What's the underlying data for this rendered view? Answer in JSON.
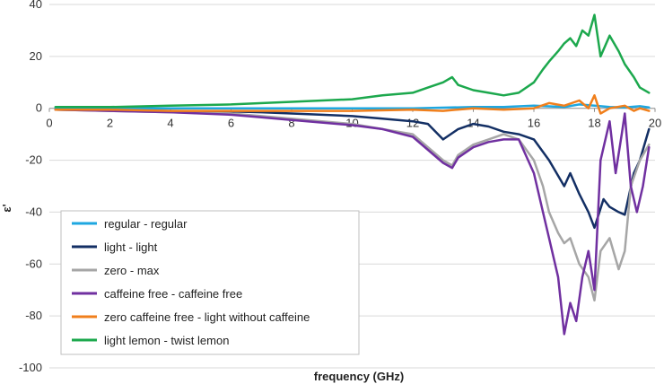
{
  "chart_data": {
    "type": "line",
    "title": "",
    "xlabel": "frequency (GHz)",
    "ylabel": "ε'",
    "xlim": [
      0,
      20
    ],
    "ylim": [
      -100,
      40
    ],
    "xticks": [
      0,
      2,
      4,
      6,
      8,
      10,
      12,
      14,
      16,
      18,
      20
    ],
    "yticks": [
      -100,
      -80,
      -60,
      -40,
      -20,
      0,
      20,
      40
    ],
    "grid": "y-major",
    "legend": "bottom-left",
    "series": [
      {
        "name": "regular - regular",
        "color": "#1ea7e0",
        "x": [
          0.2,
          2,
          4,
          6,
          8,
          10,
          12,
          14,
          15,
          16,
          17,
          17.5,
          18,
          18.5,
          19,
          19.5,
          19.8
        ],
        "y": [
          0,
          0,
          0,
          0,
          0,
          0,
          0,
          0.5,
          0.5,
          1,
          0.5,
          1.5,
          1,
          0.5,
          0.3,
          0.8,
          0.3
        ]
      },
      {
        "name": "light - light",
        "color": "#132f64",
        "x": [
          0.2,
          2,
          4,
          6,
          7,
          8,
          9,
          10,
          11,
          12,
          12.5,
          13,
          13.5,
          14,
          14.5,
          15,
          15.5,
          16,
          16.5,
          17,
          17.2,
          17.5,
          17.8,
          18,
          18.3,
          18.5,
          18.8,
          19,
          19.3,
          19.5,
          19.8
        ],
        "y": [
          -0.5,
          -0.8,
          -1,
          -1.2,
          -1.5,
          -2,
          -2.5,
          -3,
          -4,
          -5,
          -6,
          -12,
          -8,
          -6,
          -7,
          -9,
          -10,
          -12,
          -20,
          -30,
          -25,
          -33,
          -40,
          -46,
          -35,
          -38,
          -40,
          -41,
          -25,
          -20,
          -8
        ]
      },
      {
        "name": "zero - max",
        "color": "#a6a6a6",
        "x": [
          0.2,
          2,
          4,
          6,
          7,
          8,
          9,
          10,
          11,
          12,
          12.5,
          13,
          13.3,
          13.5,
          14,
          14.5,
          15,
          15.5,
          16,
          16.3,
          16.5,
          16.8,
          17,
          17.2,
          17.5,
          17.8,
          18,
          18.2,
          18.5,
          18.8,
          19,
          19.2,
          19.5,
          19.8
        ],
        "y": [
          -0.5,
          -1,
          -1.5,
          -2,
          -3,
          -4,
          -5,
          -6,
          -8,
          -10,
          -15,
          -20,
          -22,
          -18,
          -14,
          -12,
          -10,
          -12,
          -20,
          -30,
          -40,
          -48,
          -52,
          -50,
          -60,
          -65,
          -74,
          -55,
          -50,
          -62,
          -55,
          -30,
          -20,
          -14
        ]
      },
      {
        "name": "caffeine free - caffeine free",
        "color": "#7030a0",
        "x": [
          0.2,
          2,
          4,
          6,
          7,
          8,
          9,
          10,
          11,
          12,
          12.5,
          13,
          13.3,
          13.5,
          14,
          14.5,
          15,
          15.5,
          16,
          16.3,
          16.5,
          16.8,
          17,
          17.2,
          17.4,
          17.6,
          17.8,
          18,
          18.2,
          18.5,
          18.7,
          18.9,
          19,
          19.2,
          19.4,
          19.6,
          19.8
        ],
        "y": [
          -0.5,
          -1,
          -1.5,
          -2.5,
          -3.5,
          -4.5,
          -5.5,
          -6.5,
          -8,
          -11,
          -16,
          -21,
          -23,
          -19,
          -15,
          -13,
          -12,
          -12,
          -25,
          -40,
          -50,
          -65,
          -87,
          -75,
          -82,
          -65,
          -55,
          -70,
          -20,
          -5,
          -25,
          -10,
          -2,
          -30,
          -40,
          -30,
          -15
        ]
      },
      {
        "name": "zero caffeine free - light without caffeine",
        "color": "#f07f1c",
        "x": [
          0.2,
          2,
          4,
          6,
          8,
          10,
          12,
          13,
          14,
          15,
          16,
          16.5,
          17,
          17.5,
          17.8,
          18,
          18.2,
          18.5,
          19,
          19.3,
          19.5,
          19.8
        ],
        "y": [
          -0.5,
          -0.5,
          -1,
          -1,
          -1,
          -1,
          -0.5,
          -1,
          0,
          -0.5,
          0,
          2,
          1,
          3,
          0,
          5,
          -2,
          0,
          1,
          -1,
          0,
          -1
        ]
      },
      {
        "name": "light lemon - twist lemon",
        "color": "#1ca84d",
        "x": [
          0.2,
          2,
          4,
          6,
          8,
          10,
          11,
          12,
          12.5,
          13,
          13.3,
          13.5,
          14,
          14.5,
          15,
          15.5,
          16,
          16.3,
          16.5,
          16.8,
          17,
          17.2,
          17.4,
          17.6,
          17.8,
          18,
          18.2,
          18.5,
          18.8,
          19,
          19.3,
          19.5,
          19.8
        ],
        "y": [
          0.5,
          0.5,
          1,
          1.5,
          2.5,
          3.5,
          5,
          6,
          8,
          10,
          12,
          9,
          7,
          6,
          5,
          6,
          10,
          15,
          18,
          22,
          25,
          27,
          24,
          30,
          28,
          36,
          20,
          28,
          22,
          17,
          12,
          8,
          6
        ]
      }
    ]
  }
}
